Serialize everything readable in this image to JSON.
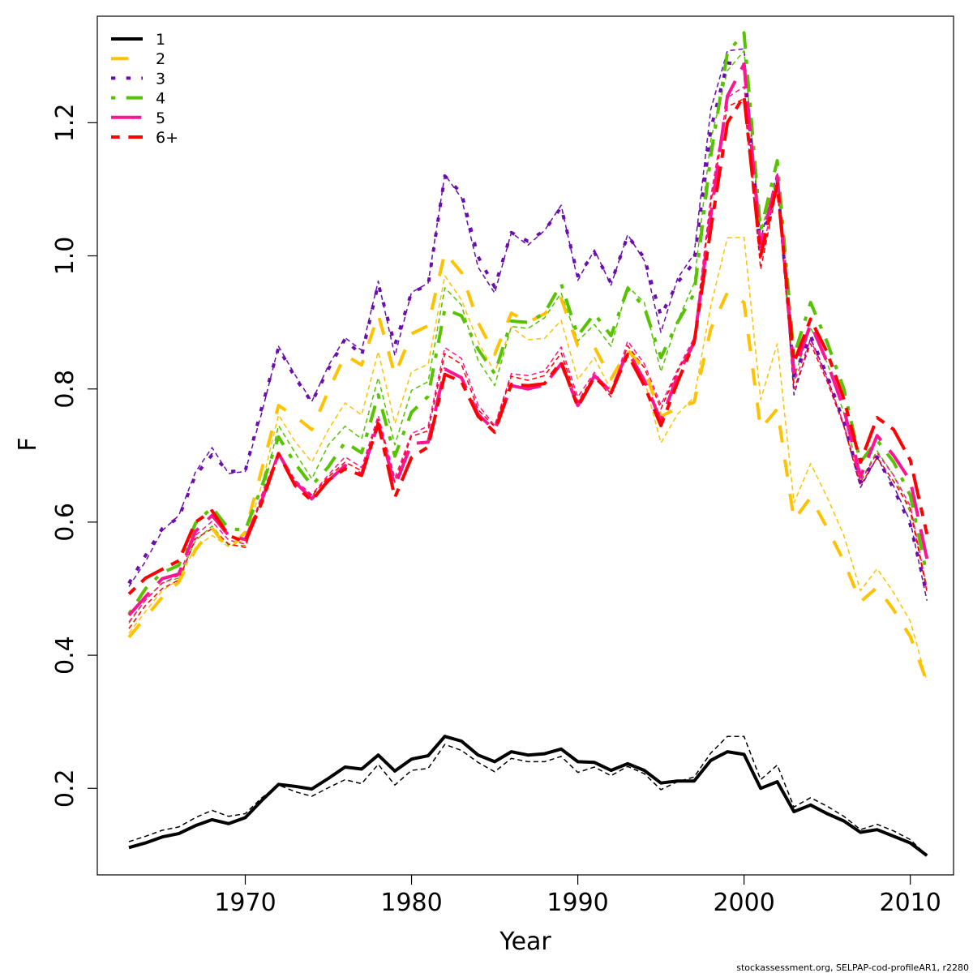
{
  "chart_data": {
    "type": "line",
    "title": "",
    "xlabel": "Year",
    "ylabel": "F",
    "xlim": [
      1961.1,
      2012.6
    ],
    "ylim": [
      0.07,
      1.36
    ],
    "xticks": [
      1970,
      1980,
      1990,
      2000,
      2010
    ],
    "yticks": [
      0.2,
      0.4,
      0.6,
      0.8,
      1.0,
      1.2
    ],
    "xtick_labels": [
      "1970",
      "1980",
      "1990",
      "2000",
      "2010"
    ],
    "ytick_labels": [
      "0.2",
      "0.4",
      "0.6",
      "0.8",
      "1.0",
      "1.2"
    ],
    "legend_position": "top-left",
    "grid": false,
    "x": [
      1963,
      1964,
      1965,
      1966,
      1967,
      1968,
      1969,
      1970,
      1971,
      1972,
      1973,
      1974,
      1975,
      1976,
      1977,
      1978,
      1979,
      1980,
      1981,
      1982,
      1983,
      1984,
      1985,
      1986,
      1987,
      1988,
      1989,
      1990,
      1991,
      1992,
      1993,
      1994,
      1995,
      1996,
      1997,
      1998,
      1999,
      2000,
      2001,
      2002,
      2003,
      2004,
      2005,
      2006,
      2007,
      2008,
      2009,
      2010,
      2011
    ],
    "series": [
      {
        "name": "1",
        "color": "#000000",
        "dash": "solid",
        "values": [
          0.111,
          0.118,
          0.127,
          0.132,
          0.144,
          0.153,
          0.147,
          0.156,
          0.182,
          0.206,
          0.203,
          0.199,
          0.215,
          0.232,
          0.229,
          0.25,
          0.226,
          0.244,
          0.249,
          0.278,
          0.271,
          0.25,
          0.24,
          0.255,
          0.25,
          0.252,
          0.259,
          0.24,
          0.239,
          0.227,
          0.237,
          0.227,
          0.208,
          0.211,
          0.211,
          0.242,
          0.255,
          0.251,
          0.2,
          0.21,
          0.165,
          0.175,
          0.162,
          0.151,
          0.134,
          0.138,
          0.128,
          0.118,
          0.099
        ],
        "alt_values": [
          0.12,
          0.128,
          0.137,
          0.142,
          0.156,
          0.167,
          0.158,
          0.162,
          0.186,
          0.205,
          0.195,
          0.188,
          0.201,
          0.213,
          0.207,
          0.236,
          0.205,
          0.227,
          0.23,
          0.266,
          0.257,
          0.239,
          0.225,
          0.245,
          0.24,
          0.24,
          0.248,
          0.224,
          0.232,
          0.219,
          0.233,
          0.222,
          0.198,
          0.21,
          0.217,
          0.253,
          0.278,
          0.278,
          0.213,
          0.235,
          0.172,
          0.186,
          0.173,
          0.158,
          0.138,
          0.146,
          0.136,
          0.123,
          0.099
        ]
      },
      {
        "name": "2",
        "color": "#FFC200",
        "dash": "dashed",
        "values": [
          0.427,
          0.457,
          0.487,
          0.51,
          0.558,
          0.591,
          0.559,
          0.585,
          0.68,
          0.775,
          0.759,
          0.739,
          0.797,
          0.851,
          0.836,
          0.912,
          0.821,
          0.883,
          0.895,
          1.005,
          0.975,
          0.9,
          0.852,
          0.914,
          0.9,
          0.913,
          0.936,
          0.865,
          0.863,
          0.815,
          0.858,
          0.83,
          0.759,
          0.771,
          0.78,
          0.89,
          0.945,
          0.93,
          0.74,
          0.77,
          0.603,
          0.637,
          0.591,
          0.541,
          0.48,
          0.502,
          0.468,
          0.428,
          0.36
        ],
        "alt_values": [
          0.433,
          0.466,
          0.497,
          0.514,
          0.562,
          0.58,
          0.563,
          0.574,
          0.657,
          0.761,
          0.721,
          0.69,
          0.739,
          0.779,
          0.761,
          0.856,
          0.748,
          0.826,
          0.837,
          0.97,
          0.934,
          0.871,
          0.825,
          0.893,
          0.874,
          0.876,
          0.903,
          0.814,
          0.847,
          0.798,
          0.85,
          0.814,
          0.719,
          0.762,
          0.788,
          0.925,
          1.027,
          1.028,
          0.784,
          0.868,
          0.629,
          0.688,
          0.637,
          0.58,
          0.497,
          0.53,
          0.494,
          0.451,
          0.361
        ]
      },
      {
        "name": "3",
        "color": "#6A0DAD",
        "dash": "dotted",
        "values": [
          0.508,
          0.55,
          0.59,
          0.607,
          0.67,
          0.701,
          0.676,
          0.677,
          0.773,
          0.862,
          0.817,
          0.78,
          0.83,
          0.875,
          0.85,
          0.958,
          0.866,
          0.945,
          0.956,
          1.12,
          1.094,
          0.999,
          0.953,
          1.035,
          1.022,
          1.038,
          1.073,
          0.97,
          1.005,
          0.959,
          1.03,
          0.997,
          0.91,
          0.96,
          0.99,
          1.19,
          1.29,
          1.287,
          1.01,
          1.114,
          0.82,
          0.88,
          0.82,
          0.75,
          0.66,
          0.698,
          0.65,
          0.596,
          0.49
        ],
        "alt_values": [
          0.503,
          0.541,
          0.587,
          0.61,
          0.675,
          0.712,
          0.673,
          0.676,
          0.765,
          0.864,
          0.821,
          0.781,
          0.835,
          0.877,
          0.858,
          0.962,
          0.85,
          0.945,
          0.959,
          1.122,
          1.087,
          0.983,
          0.944,
          1.035,
          1.016,
          1.038,
          1.076,
          0.963,
          1.009,
          0.956,
          1.032,
          0.993,
          0.885,
          0.966,
          1.003,
          1.22,
          1.308,
          1.311,
          1.024,
          1.125,
          0.791,
          0.876,
          0.818,
          0.745,
          0.652,
          0.697,
          0.654,
          0.601,
          0.482
        ]
      },
      {
        "name": "4",
        "color": "#56C200",
        "dash": "dotdash",
        "values": [
          0.462,
          0.5,
          0.524,
          0.535,
          0.598,
          0.622,
          0.59,
          0.588,
          0.654,
          0.728,
          0.688,
          0.655,
          0.683,
          0.72,
          0.704,
          0.791,
          0.699,
          0.765,
          0.789,
          0.92,
          0.91,
          0.86,
          0.823,
          0.902,
          0.9,
          0.914,
          0.958,
          0.88,
          0.913,
          0.88,
          0.951,
          0.923,
          0.847,
          0.9,
          0.943,
          1.15,
          1.305,
          1.335,
          1.038,
          1.143,
          0.85,
          0.93,
          0.87,
          0.8,
          0.69,
          0.723,
          0.69,
          0.64,
          0.52
        ],
        "alt_values": [
          0.448,
          0.483,
          0.509,
          0.516,
          0.572,
          0.594,
          0.565,
          0.565,
          0.638,
          0.745,
          0.704,
          0.665,
          0.716,
          0.744,
          0.725,
          0.817,
          0.716,
          0.798,
          0.811,
          0.952,
          0.926,
          0.843,
          0.805,
          0.894,
          0.891,
          0.907,
          0.944,
          0.872,
          0.897,
          0.864,
          0.954,
          0.93,
          0.826,
          0.902,
          0.959,
          1.174,
          1.278,
          1.308,
          1.037,
          1.117,
          0.816,
          0.892,
          0.839,
          0.764,
          0.662,
          0.707,
          0.67,
          0.614,
          0.503
        ]
      },
      {
        "name": "5",
        "color": "#FF1493",
        "dash": "longdash",
        "values": [
          0.46,
          0.488,
          0.515,
          0.522,
          0.586,
          0.61,
          0.58,
          0.574,
          0.633,
          0.703,
          0.66,
          0.635,
          0.662,
          0.685,
          0.672,
          0.748,
          0.654,
          0.718,
          0.72,
          0.83,
          0.817,
          0.762,
          0.738,
          0.805,
          0.8,
          0.806,
          0.838,
          0.775,
          0.82,
          0.796,
          0.857,
          0.813,
          0.752,
          0.82,
          0.87,
          1.06,
          1.24,
          1.288,
          1.014,
          1.12,
          0.825,
          0.898,
          0.84,
          0.77,
          0.668,
          0.73,
          0.7,
          0.662,
          0.545
        ],
        "alt_values": [
          0.45,
          0.483,
          0.508,
          0.52,
          0.58,
          0.601,
          0.573,
          0.567,
          0.642,
          0.705,
          0.663,
          0.641,
          0.671,
          0.698,
          0.682,
          0.76,
          0.666,
          0.733,
          0.744,
          0.862,
          0.846,
          0.776,
          0.745,
          0.823,
          0.82,
          0.827,
          0.863,
          0.788,
          0.825,
          0.792,
          0.872,
          0.838,
          0.776,
          0.829,
          0.877,
          1.089,
          1.238,
          1.254,
          0.996,
          1.108,
          0.81,
          0.874,
          0.815,
          0.747,
          0.66,
          0.704,
          0.67,
          0.624,
          0.5
        ]
      },
      {
        "name": "6+",
        "color": "#FF0000",
        "dash": "twodash",
        "values": [
          0.492,
          0.516,
          0.529,
          0.542,
          0.6,
          0.617,
          0.58,
          0.57,
          0.63,
          0.703,
          0.655,
          0.632,
          0.663,
          0.68,
          0.67,
          0.748,
          0.637,
          0.697,
          0.713,
          0.822,
          0.811,
          0.759,
          0.735,
          0.807,
          0.805,
          0.808,
          0.841,
          0.773,
          0.818,
          0.794,
          0.852,
          0.805,
          0.745,
          0.81,
          0.87,
          1.04,
          1.2,
          1.24,
          1.0,
          1.108,
          0.84,
          0.905,
          0.855,
          0.785,
          0.69,
          0.757,
          0.739,
          0.693,
          0.582
        ],
        "alt_values": [
          0.44,
          0.475,
          0.5,
          0.513,
          0.575,
          0.59,
          0.567,
          0.562,
          0.638,
          0.704,
          0.66,
          0.639,
          0.668,
          0.69,
          0.677,
          0.754,
          0.66,
          0.729,
          0.737,
          0.853,
          0.837,
          0.769,
          0.743,
          0.819,
          0.813,
          0.82,
          0.854,
          0.781,
          0.82,
          0.788,
          0.865,
          0.832,
          0.77,
          0.826,
          0.873,
          1.08,
          1.224,
          1.236,
          0.98,
          1.103,
          0.8,
          0.868,
          0.811,
          0.744,
          0.655,
          0.697,
          0.661,
          0.62,
          0.495
        ]
      }
    ]
  },
  "footer": {
    "source_text": "stockassessment.org, SELPAP-cod-profileAR1, r2280"
  }
}
